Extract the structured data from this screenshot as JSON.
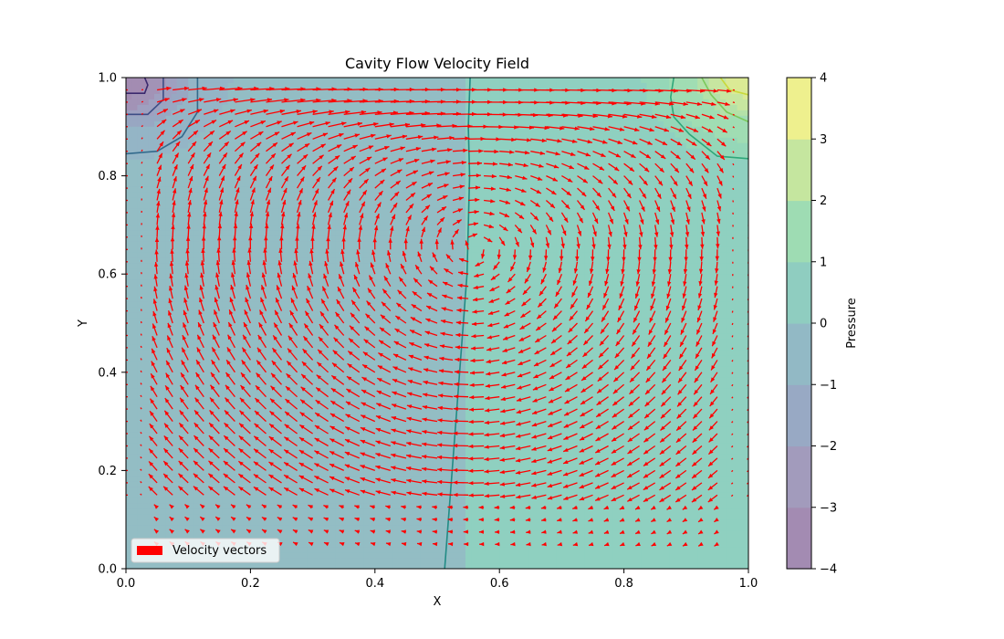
{
  "chart_data": {
    "type": "vector_field_contour",
    "title": "Cavity Flow Velocity Field",
    "xlabel": "X",
    "ylabel": "Y",
    "xlim": [
      0,
      1
    ],
    "ylim": [
      0,
      1
    ],
    "x_ticks": [
      "0.0",
      "0.2",
      "0.4",
      "0.6",
      "0.8",
      "1.0"
    ],
    "y_ticks": [
      "0.0",
      "0.2",
      "0.4",
      "0.6",
      "0.8",
      "1.0"
    ],
    "grid": false,
    "legend": {
      "position": "lower-left",
      "entries": [
        {
          "label": "Velocity vectors",
          "color": "#ff0000"
        }
      ]
    },
    "vector_color": "#ff0000",
    "vector_grid": {
      "nx": 41,
      "ny": 41
    },
    "colorbar": {
      "label": "Pressure",
      "ticks": [
        "−4",
        "−3",
        "−2",
        "−1",
        "0",
        "1",
        "2",
        "3",
        "4"
      ],
      "levels": [
        -4,
        -3.5,
        -3,
        -2.5,
        -2,
        -1.5,
        -1,
        -0.5,
        0,
        0.5,
        1,
        1.5,
        2,
        2.5,
        3,
        3.5,
        4
      ],
      "colors": [
        "#a38cb2",
        "#a293b6",
        "#9fa0c0",
        "#98a7c2",
        "#94b5c6",
        "#91bfc4",
        "#8fcdc0",
        "#95d7b8",
        "#a0ddb3",
        "#b4e1a8",
        "#c7e6a0",
        "#dbea95",
        "#eef08e"
      ],
      "alpha": 0.5
    },
    "pressure_field_description": "near 0 across cavity; low (about -2 to -3) at top-left corner, high (about +2 to +3) at top-right corner",
    "contour_lines": [
      {
        "level": 0,
        "points": [
          [
            0.512,
            0
          ],
          [
            0.53,
            0.3
          ],
          [
            0.548,
            0.6
          ],
          [
            0.552,
            0.8
          ],
          [
            0.55,
            0.9
          ],
          [
            0.553,
            1.0
          ]
        ]
      },
      {
        "level": 0.5,
        "points": [
          [
            0.88,
            1.0
          ],
          [
            0.875,
            0.96
          ],
          [
            0.88,
            0.92
          ],
          [
            0.905,
            0.885
          ],
          [
            0.95,
            0.84
          ],
          [
            1.0,
            0.835
          ]
        ]
      },
      {
        "level": 1.5,
        "points": [
          [
            0.925,
            1.0
          ],
          [
            0.94,
            0.965
          ],
          [
            0.965,
            0.93
          ],
          [
            1.0,
            0.91
          ]
        ]
      },
      {
        "level": 2.5,
        "points": [
          [
            0.955,
            1.0
          ],
          [
            0.97,
            0.975
          ],
          [
            1.0,
            0.965
          ]
        ]
      },
      {
        "level": -0.5,
        "points": [
          [
            0.0,
            0.845
          ],
          [
            0.05,
            0.85
          ],
          [
            0.09,
            0.88
          ],
          [
            0.115,
            0.93
          ],
          [
            0.115,
            1.0
          ]
        ]
      },
      {
        "level": -1.5,
        "points": [
          [
            0.0,
            0.925
          ],
          [
            0.035,
            0.925
          ],
          [
            0.06,
            0.955
          ],
          [
            0.06,
            0.985
          ],
          [
            0.06,
            1.0
          ]
        ]
      },
      {
        "level": -2.5,
        "points": [
          [
            0.0,
            0.968
          ],
          [
            0.03,
            0.968
          ],
          [
            0.035,
            0.985
          ],
          [
            0.03,
            1.0
          ]
        ]
      }
    ]
  }
}
